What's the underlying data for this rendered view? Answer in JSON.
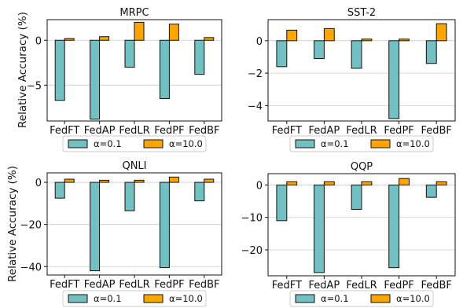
{
  "figure": {
    "ylabel": "Relative Accuracy (%)",
    "legend_labels": [
      "α=0.1",
      "α=10.0"
    ],
    "colors": {
      "low_alpha": "#73c0c2",
      "high_alpha": "#ffa500",
      "edge": "#111111",
      "grid": "#cccccc"
    }
  },
  "chart_data": [
    {
      "type": "bar",
      "title": "MRPC",
      "categories": [
        "FedFT",
        "FedAP",
        "FedLR",
        "FedPF",
        "FedBF"
      ],
      "series": [
        {
          "name": "α=0.1",
          "values": [
            -6.7,
            -8.8,
            -3.0,
            -6.5,
            -3.8
          ]
        },
        {
          "name": "α=10.0",
          "values": [
            0.2,
            0.4,
            2.0,
            1.8,
            0.3
          ]
        }
      ],
      "ylim": [
        -9.0,
        2.3
      ],
      "yticks": [
        -5,
        0
      ],
      "grid": true,
      "legend": "bottom"
    },
    {
      "type": "bar",
      "title": "SST-2",
      "categories": [
        "FedFT",
        "FedAP",
        "FedLR",
        "FedPF",
        "FedBF"
      ],
      "series": [
        {
          "name": "α=0.1",
          "values": [
            -1.6,
            -1.1,
            -1.7,
            -4.8,
            -1.4
          ]
        },
        {
          "name": "α=10.0",
          "values": [
            0.65,
            0.75,
            0.1,
            0.1,
            1.05
          ]
        }
      ],
      "ylim": [
        -4.95,
        1.3
      ],
      "yticks": [
        -4,
        -2,
        0
      ],
      "grid": true,
      "legend": "bottom"
    },
    {
      "type": "bar",
      "title": "QNLI",
      "categories": [
        "FedFT",
        "FedAP",
        "FedLR",
        "FedPF",
        "FedBF"
      ],
      "series": [
        {
          "name": "α=0.1",
          "values": [
            -7.5,
            -42.0,
            -13.5,
            -40.5,
            -8.8
          ]
        },
        {
          "name": "α=10.0",
          "values": [
            1.5,
            1.0,
            1.0,
            2.5,
            1.5
          ]
        }
      ],
      "ylim": [
        -44.0,
        4.5
      ],
      "yticks": [
        -40,
        -20,
        0
      ],
      "grid": true,
      "legend": "bottom"
    },
    {
      "type": "bar",
      "title": "QQP",
      "categories": [
        "FedFT",
        "FedAP",
        "FedLR",
        "FedPF",
        "FedBF"
      ],
      "series": [
        {
          "name": "α=0.1",
          "values": [
            -11.0,
            -27.0,
            -7.5,
            -25.5,
            -3.8
          ]
        },
        {
          "name": "α=10.0",
          "values": [
            1.0,
            1.0,
            1.0,
            2.0,
            1.0
          ]
        }
      ],
      "ylim": [
        -28.0,
        3.5
      ],
      "yticks": [
        -20,
        -10,
        0
      ],
      "grid": true,
      "legend": "bottom"
    }
  ]
}
